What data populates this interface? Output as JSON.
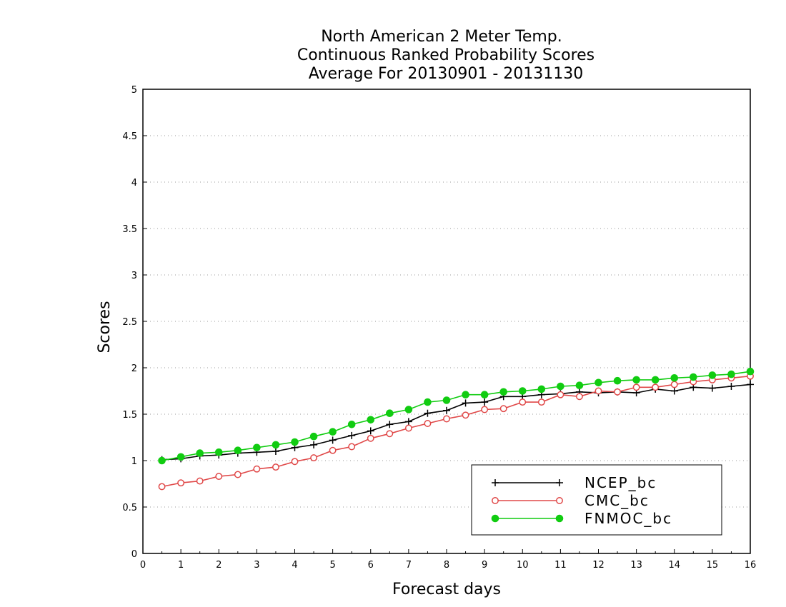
{
  "chart_data": {
    "type": "line",
    "title_lines": [
      "North American 2 Meter Temp.",
      "Continuous Ranked Probability Scores",
      "Average For 20130901 - 20131130"
    ],
    "xlabel": "Forecast days",
    "ylabel": "Scores",
    "xlim": [
      0,
      16
    ],
    "ylim": [
      0,
      5
    ],
    "x_ticks": [
      0,
      1,
      2,
      3,
      4,
      5,
      6,
      7,
      8,
      9,
      10,
      11,
      12,
      13,
      14,
      15,
      16
    ],
    "x_tick_labels": [
      "0",
      "1",
      "2",
      "3",
      "4",
      "5",
      "6",
      "7",
      "8",
      "9",
      "10",
      "11",
      "12",
      "13",
      "14",
      "15",
      "16"
    ],
    "y_ticks": [
      0,
      0.5,
      1,
      1.5,
      2,
      2.5,
      3,
      3.5,
      4,
      4.5,
      5
    ],
    "y_tick_labels": [
      "0",
      "0.5",
      "1",
      "1.5",
      "2",
      "2.5",
      "3",
      "3.5",
      "4",
      "4.5",
      "5"
    ],
    "grid": "horizontal dotted",
    "legend_position": "bottom-right",
    "x": [
      0.5,
      1,
      1.5,
      2,
      2.5,
      3,
      3.5,
      4,
      4.5,
      5,
      5.5,
      6,
      6.5,
      7,
      7.5,
      8,
      8.5,
      9,
      9.5,
      10,
      10.5,
      11,
      11.5,
      12,
      12.5,
      13,
      13.5,
      14,
      14.5,
      15,
      15.5,
      16
    ],
    "series": [
      {
        "name": "NCEP_bc",
        "color": "#000000",
        "marker": "plus",
        "values": [
          1.01,
          1.02,
          1.05,
          1.06,
          1.08,
          1.09,
          1.1,
          1.14,
          1.17,
          1.22,
          1.27,
          1.32,
          1.39,
          1.42,
          1.51,
          1.54,
          1.62,
          1.63,
          1.69,
          1.69,
          1.71,
          1.72,
          1.74,
          1.73,
          1.74,
          1.73,
          1.77,
          1.75,
          1.79,
          1.78,
          1.8,
          1.82
        ]
      },
      {
        "name": "CMC_bc",
        "color": "#e04848",
        "marker": "open-circle",
        "values": [
          0.72,
          0.76,
          0.78,
          0.83,
          0.85,
          0.91,
          0.93,
          0.99,
          1.03,
          1.11,
          1.15,
          1.24,
          1.29,
          1.35,
          1.4,
          1.45,
          1.49,
          1.55,
          1.56,
          1.63,
          1.63,
          1.71,
          1.69,
          1.75,
          1.74,
          1.79,
          1.79,
          1.82,
          1.85,
          1.87,
          1.89,
          1.91
        ]
      },
      {
        "name": "FNMOC_bc",
        "color": "#11cc11",
        "marker": "filled-circle",
        "values": [
          1.0,
          1.04,
          1.08,
          1.09,
          1.11,
          1.14,
          1.17,
          1.2,
          1.26,
          1.31,
          1.39,
          1.44,
          1.51,
          1.55,
          1.63,
          1.65,
          1.71,
          1.71,
          1.74,
          1.75,
          1.77,
          1.8,
          1.81,
          1.84,
          1.86,
          1.87,
          1.87,
          1.89,
          1.9,
          1.92,
          1.93,
          1.96
        ]
      }
    ]
  }
}
